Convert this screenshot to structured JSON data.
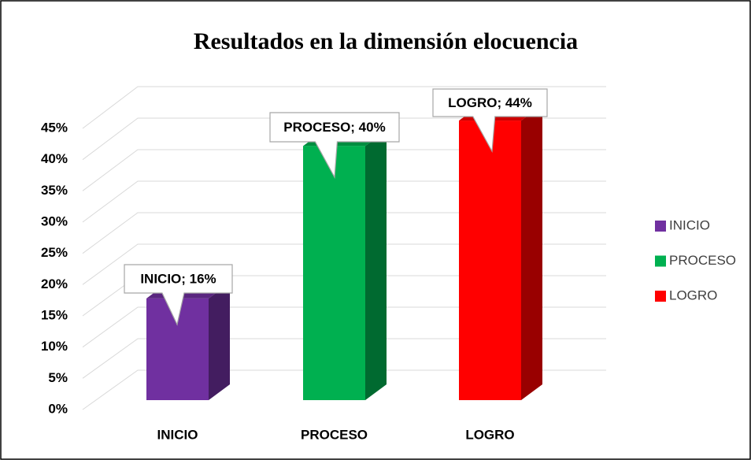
{
  "chart_data": {
    "type": "bar3d",
    "title": "Resultados en la dimensión elocuencia",
    "categories": [
      "INICIO",
      "PROCESO",
      "LOGRO"
    ],
    "values": [
      16,
      40,
      44
    ],
    "value_labels": [
      "INICIO; 16%",
      "PROCESO; 40%",
      "LOGRO; 44%"
    ],
    "colors": [
      "#7030a0",
      "#00b050",
      "#ff0000"
    ],
    "ylim": [
      0,
      45
    ],
    "yticks": [
      {
        "value": 0,
        "label": "0%"
      },
      {
        "value": 5,
        "label": "5%"
      },
      {
        "value": 10,
        "label": "10%"
      },
      {
        "value": 15,
        "label": "15%"
      },
      {
        "value": 20,
        "label": "20%"
      },
      {
        "value": 25,
        "label": "25%"
      },
      {
        "value": 30,
        "label": "30%"
      },
      {
        "value": 35,
        "label": "35%"
      },
      {
        "value": 40,
        "label": "40%"
      },
      {
        "value": 45,
        "label": "45%"
      }
    ],
    "grid": true,
    "legend": "right"
  }
}
